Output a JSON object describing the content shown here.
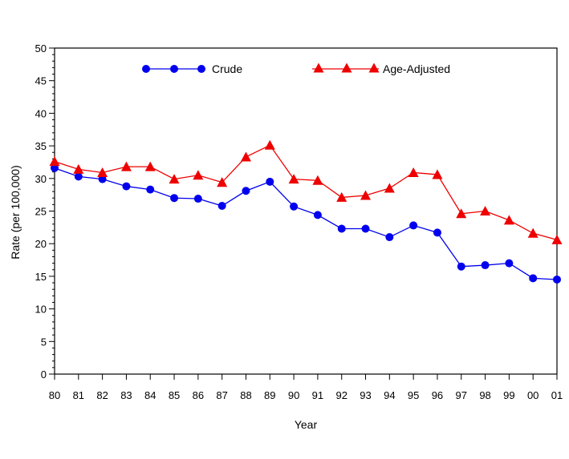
{
  "chart_data": {
    "type": "line",
    "title": "",
    "xlabel": "Year",
    "ylabel": "Rate (per 100,000)",
    "ylim": [
      0,
      50
    ],
    "yticks": [
      0,
      5,
      10,
      15,
      20,
      25,
      30,
      35,
      40,
      45,
      50
    ],
    "categories": [
      "80",
      "81",
      "82",
      "83",
      "84",
      "85",
      "86",
      "87",
      "88",
      "89",
      "90",
      "91",
      "92",
      "93",
      "94",
      "95",
      "96",
      "97",
      "98",
      "99",
      "00",
      "01"
    ],
    "legend_position": "top",
    "grid": false,
    "series": [
      {
        "name": "Crude",
        "color": "#0000ee",
        "marker": "circle",
        "values": [
          31.6,
          30.3,
          29.9,
          28.8,
          28.3,
          27.0,
          26.9,
          25.8,
          28.1,
          29.5,
          25.7,
          24.4,
          22.3,
          22.3,
          21.0,
          22.8,
          21.7,
          16.5,
          16.7,
          17.0,
          14.7,
          14.5
        ]
      },
      {
        "name": "Age-Adjusted",
        "color": "#ee0000",
        "marker": "triangle",
        "values": [
          32.6,
          31.4,
          30.9,
          31.8,
          31.8,
          29.9,
          30.5,
          29.4,
          33.3,
          35.1,
          29.9,
          29.7,
          27.1,
          27.4,
          28.5,
          30.9,
          30.6,
          24.6,
          25.0,
          23.6,
          21.6,
          20.6
        ]
      }
    ]
  }
}
